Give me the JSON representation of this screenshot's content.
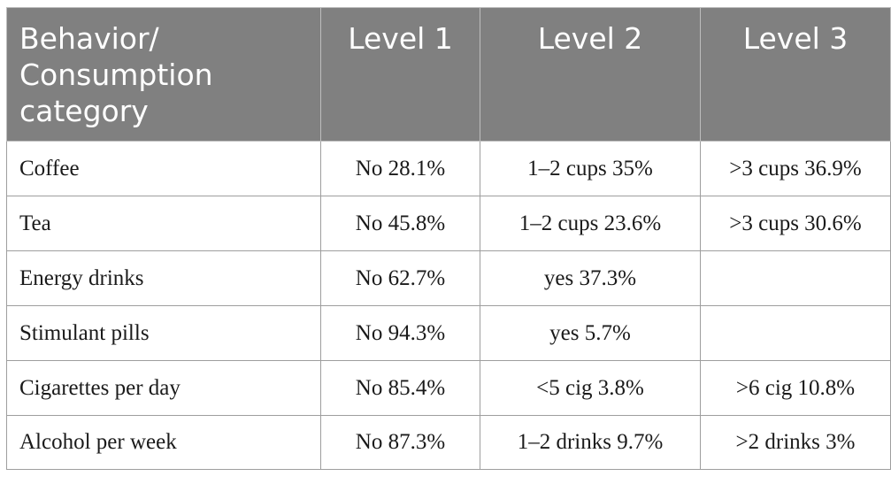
{
  "table": {
    "headers": [
      "Behavior/ Consumption category",
      "Level 1",
      "Level 2",
      "Level 3"
    ],
    "rows": [
      {
        "category": "Coffee",
        "level1": "No 28.1%",
        "level2": "1–2 cups 35%",
        "level3": ">3 cups 36.9%"
      },
      {
        "category": "Tea",
        "level1": "No 45.8%",
        "level2": "1–2 cups 23.6%",
        "level3": ">3 cups 30.6%"
      },
      {
        "category": "Energy drinks",
        "level1": "No 62.7%",
        "level2": "yes 37.3%",
        "level3": ""
      },
      {
        "category": "Stimulant pills",
        "level1": "No 94.3%",
        "level2": "yes 5.7%",
        "level3": ""
      },
      {
        "category": "Cigarettes per day",
        "level1": "No 85.4%",
        "level2": "<5 cig 3.8%",
        "level3": ">6 cig 10.8%"
      },
      {
        "category": "Alcohol per week",
        "level1": "No 87.3%",
        "level2": "1–2 drinks 9.7%",
        "level3": ">2 drinks 3%"
      }
    ]
  },
  "colors": {
    "header_background": "#808080",
    "header_text": "#ffffff",
    "border": "#9e9e9e",
    "body_text": "#1a1a1a"
  }
}
